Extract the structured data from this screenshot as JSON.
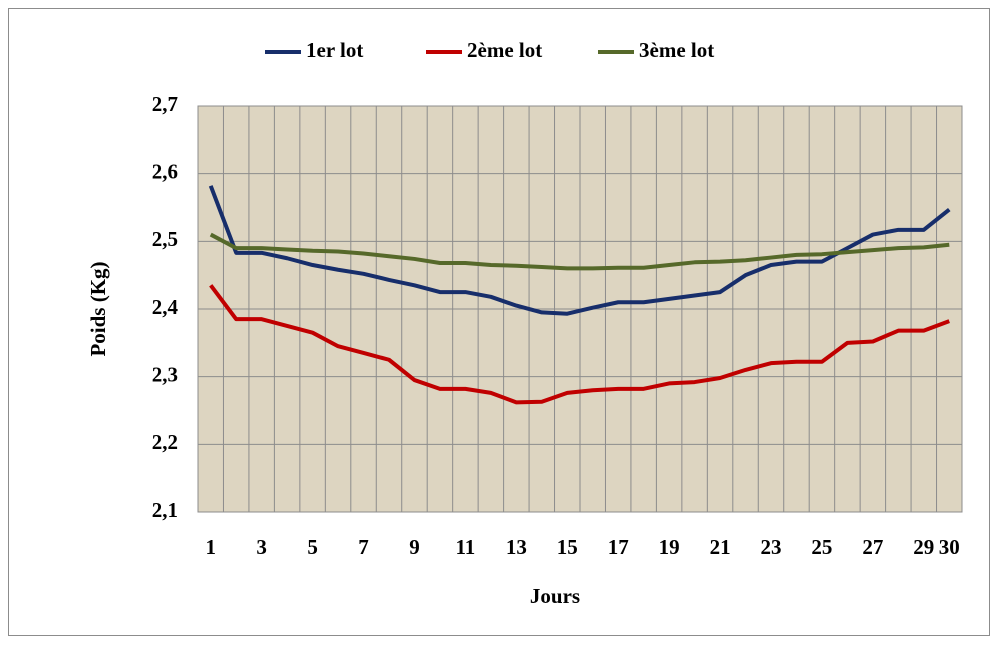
{
  "chart_data": {
    "type": "line",
    "x_label": "Jours",
    "y_label": "Poids (Kg)",
    "categories": [
      1,
      null,
      3,
      null,
      5,
      null,
      7,
      null,
      9,
      null,
      11,
      null,
      13,
      null,
      15,
      null,
      17,
      null,
      19,
      null,
      21,
      null,
      23,
      null,
      25,
      null,
      27,
      null,
      29,
      30
    ],
    "series": [
      {
        "name": "1er lot",
        "color": "#172e6b",
        "values": [
          2.582,
          2.483,
          2.483,
          2.475,
          2.465,
          2.458,
          2.452,
          2.443,
          2.435,
          2.425,
          2.425,
          2.418,
          2.405,
          2.395,
          2.393,
          2.402,
          2.41,
          2.41,
          2.415,
          2.42,
          2.425,
          2.45,
          2.465,
          2.47,
          2.47,
          2.49,
          2.51,
          2.517,
          2.517,
          2.547
        ]
      },
      {
        "name": "2ème lot",
        "color": "#c00000",
        "values": [
          2.435,
          2.385,
          2.385,
          2.375,
          2.365,
          2.345,
          2.335,
          2.325,
          2.295,
          2.282,
          2.282,
          2.276,
          2.262,
          2.263,
          2.276,
          2.28,
          2.282,
          2.282,
          2.29,
          2.292,
          2.298,
          2.31,
          2.32,
          2.322,
          2.322,
          2.35,
          2.352,
          2.368,
          2.368,
          2.382
        ]
      },
      {
        "name": "3ème lot",
        "color": "#56692a",
        "values": [
          2.51,
          2.49,
          2.49,
          2.488,
          2.486,
          2.485,
          2.482,
          2.478,
          2.474,
          2.468,
          2.468,
          2.465,
          2.464,
          2.462,
          2.46,
          2.46,
          2.461,
          2.461,
          2.465,
          2.469,
          2.47,
          2.472,
          2.476,
          2.48,
          2.481,
          2.484,
          2.487,
          2.49,
          2.491,
          2.495
        ]
      }
    ],
    "ylim": [
      2.1,
      2.7
    ],
    "yticks": [
      {
        "value": 2.1,
        "label": "2,1"
      },
      {
        "value": 2.2,
        "label": "2,2"
      },
      {
        "value": 2.3,
        "label": "2,3"
      },
      {
        "value": 2.4,
        "label": "2,4"
      },
      {
        "value": 2.5,
        "label": "2,5"
      },
      {
        "value": 2.6,
        "label": "2,6"
      },
      {
        "value": 2.7,
        "label": "2,7"
      }
    ],
    "grid": true,
    "legend": "top"
  }
}
